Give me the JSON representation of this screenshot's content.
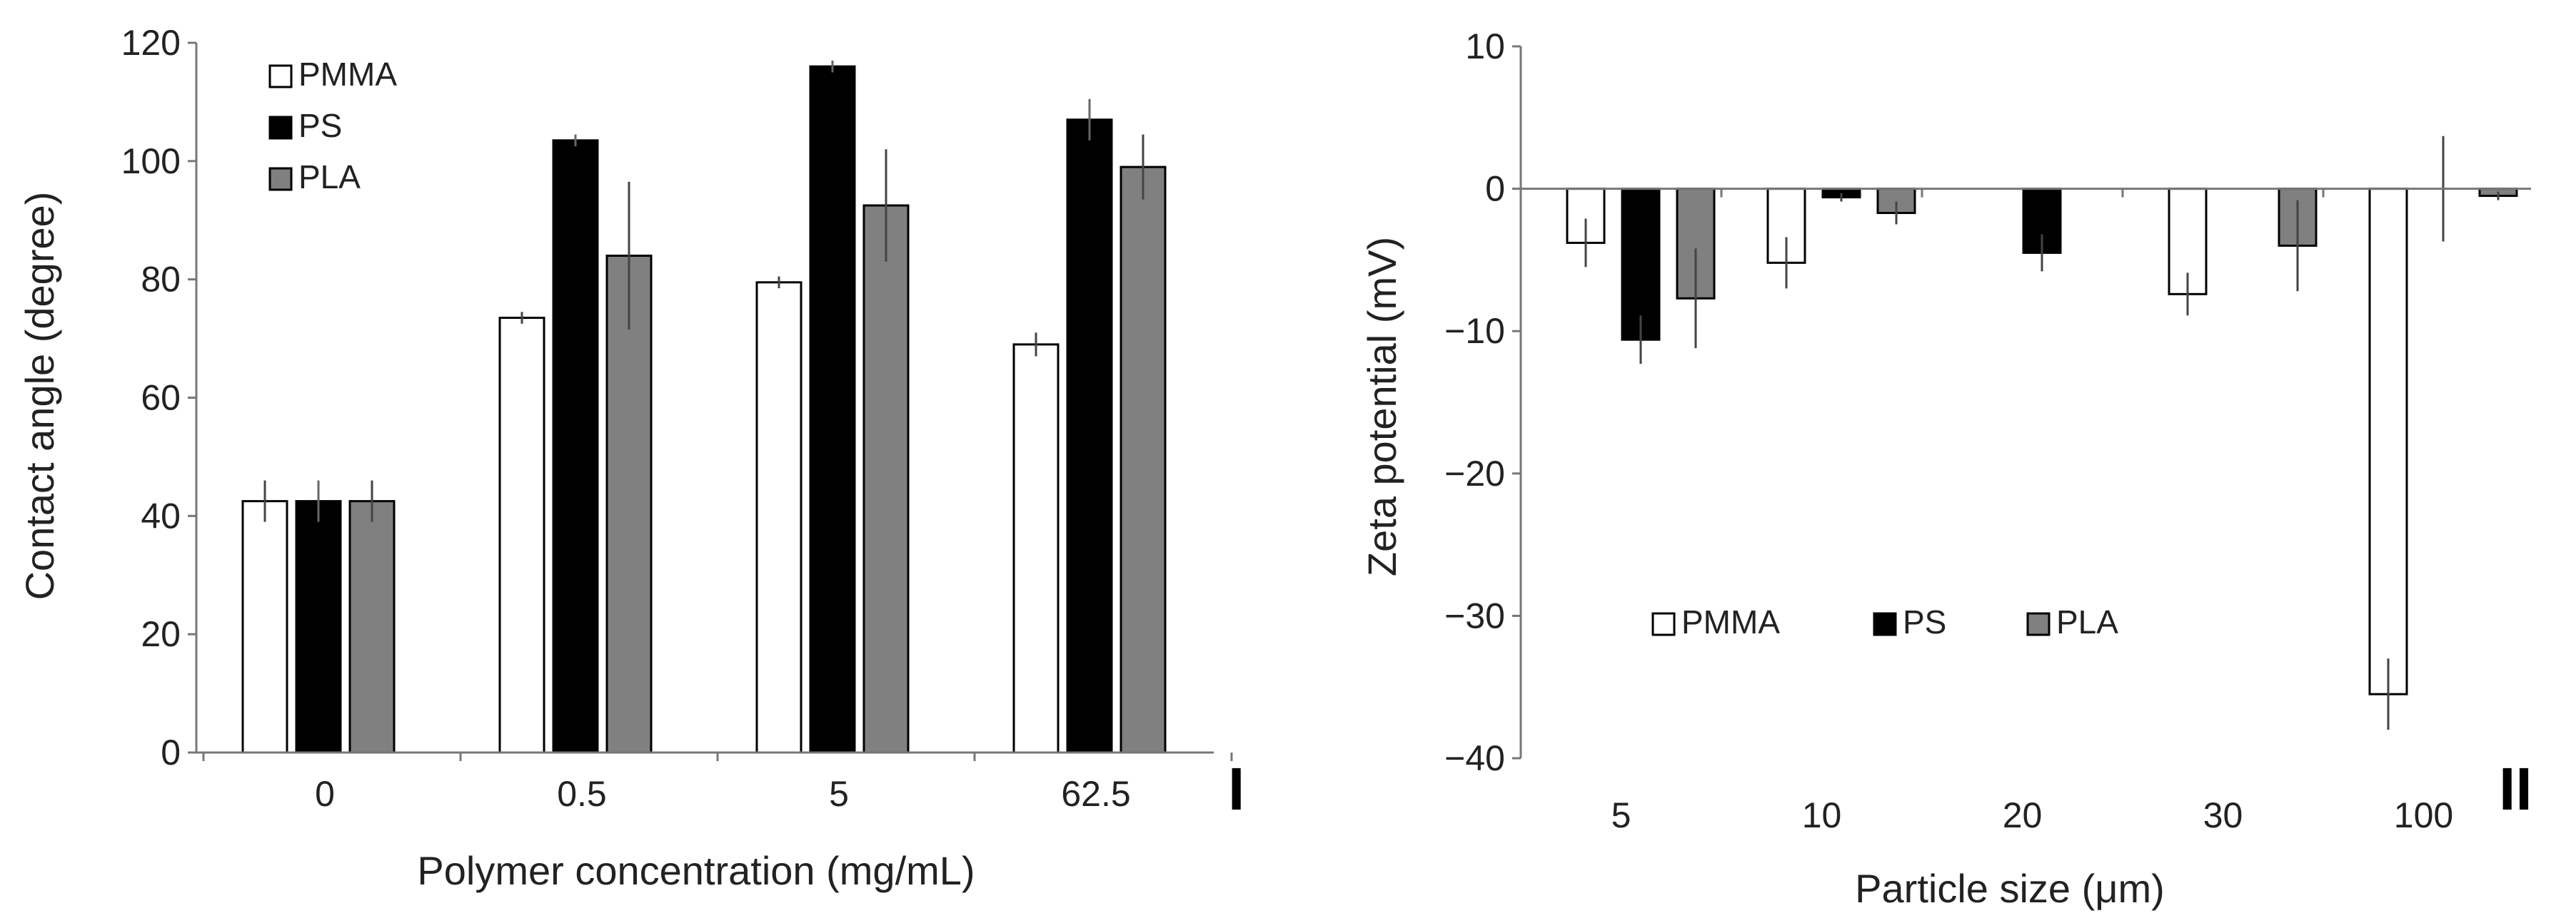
{
  "chart_data": [
    {
      "type": "bar",
      "panel_label": "I",
      "title": "",
      "xlabel": "Polymer concentration (mg/mL)",
      "ylabel": "Contact angle (degree)",
      "ylim": [
        0,
        120
      ],
      "yticks": [
        0,
        20,
        40,
        60,
        80,
        100,
        120
      ],
      "ytick_labels": [
        "0",
        "20",
        "40",
        "60",
        "80",
        "100",
        "120"
      ],
      "categories": [
        "0",
        "0.5",
        "5",
        "62.5"
      ],
      "legend_position": "top-left",
      "series": [
        {
          "name": "PMMA",
          "color": "#ffffff",
          "values": [
            42.5,
            73.5,
            79.5,
            69.0
          ],
          "errors": [
            3.5,
            1.0,
            1.0,
            2.0
          ]
        },
        {
          "name": "PS",
          "color": "#000000",
          "values": [
            42.5,
            103.5,
            116.0,
            107.0
          ],
          "errors": [
            3.5,
            1.0,
            1.0,
            3.5
          ]
        },
        {
          "name": "PLA",
          "color": "#808080",
          "values": [
            42.5,
            84.0,
            92.5,
            99.0
          ],
          "errors": [
            3.5,
            12.5,
            9.5,
            5.5
          ]
        }
      ]
    },
    {
      "type": "bar",
      "panel_label": "II",
      "title": "",
      "xlabel": "Particle size (μm)",
      "ylabel": "Zeta potential (mV)",
      "ylim": [
        -40,
        10
      ],
      "yticks": [
        -40,
        -30,
        -20,
        -10,
        0,
        10
      ],
      "ytick_labels": [
        "−40",
        "−30",
        "−20",
        "−10",
        "0",
        "10"
      ],
      "categories": [
        "5",
        "10",
        "20",
        "30",
        "100"
      ],
      "legend_position": "bottom-left",
      "series": [
        {
          "name": "PMMA",
          "color": "#ffffff",
          "values": [
            -3.8,
            -5.2,
            0.0,
            -7.4,
            -35.5
          ],
          "errors": [
            1.7,
            1.8,
            0.0,
            1.5,
            2.5
          ]
        },
        {
          "name": "PS",
          "color": "#000000",
          "values": [
            -10.6,
            -0.6,
            -4.5,
            0.0,
            0.0
          ],
          "errors": [
            1.7,
            0.3,
            1.3,
            0.0,
            3.7
          ]
        },
        {
          "name": "PLA",
          "color": "#808080",
          "values": [
            -7.7,
            -1.7,
            0.0,
            -4.0,
            -0.5
          ],
          "errors": [
            3.5,
            0.8,
            0.0,
            3.2,
            0.3
          ]
        }
      ]
    }
  ]
}
